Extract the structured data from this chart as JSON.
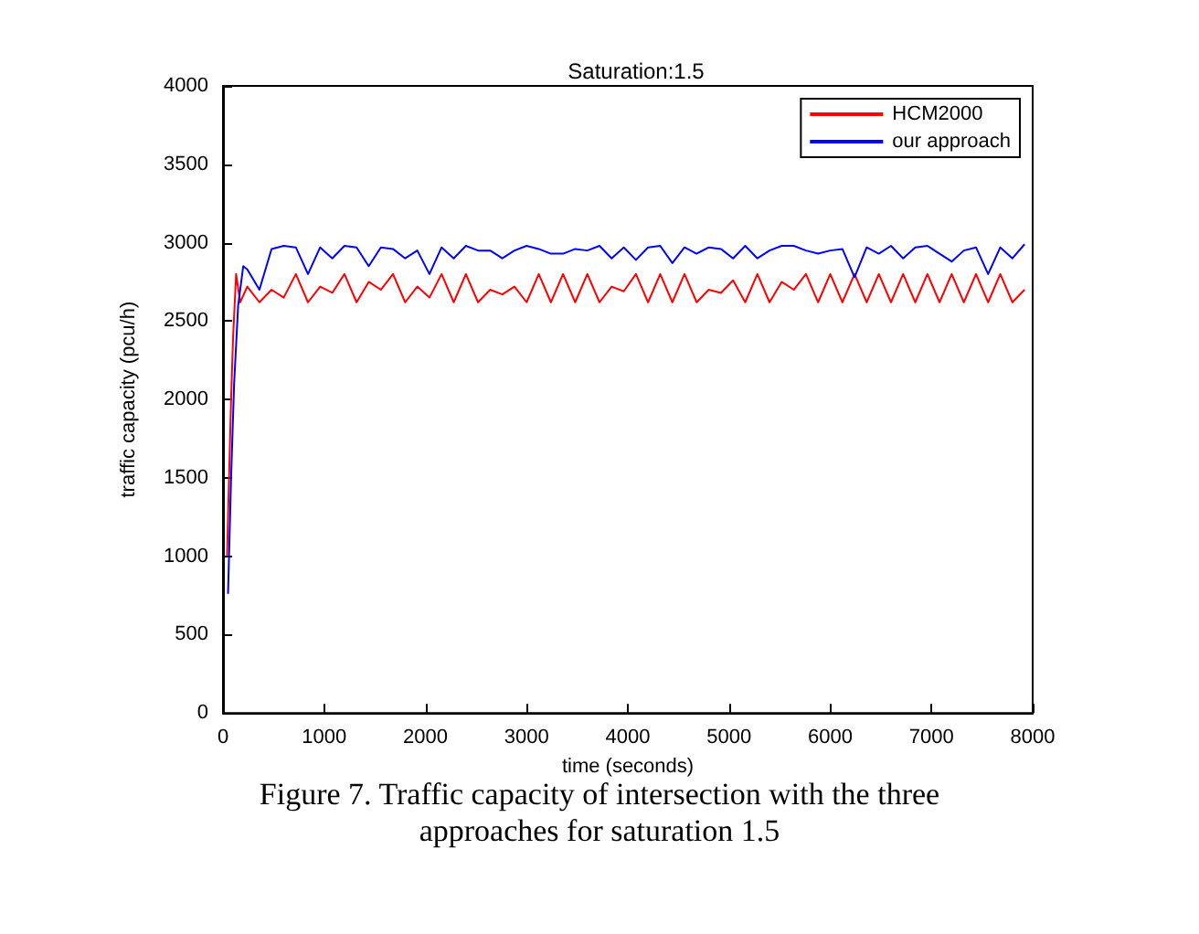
{
  "chart_data": {
    "type": "line",
    "title": "Saturation:1.5",
    "xlabel": "time (seconds)",
    "ylabel": "traffic capacity (pcu/h)",
    "annotations": [
      "Figure 7. Traffic capacity of intersection with the three approaches for saturation 1.5"
    ],
    "xlim": [
      0,
      8000
    ],
    "xticks": [
      0,
      1000,
      2000,
      3000,
      4000,
      5000,
      6000,
      7000,
      8000
    ],
    "ylim": [
      0,
      4000
    ],
    "yticks": [
      0,
      500,
      1000,
      1500,
      2000,
      2500,
      3000,
      3500,
      4000
    ],
    "grid": false,
    "legend": "top right",
    "marker": "none",
    "line_style": "solid",
    "series": [
      {
        "name": "HCM2000",
        "color": "#ff0000",
        "x": [
          40,
          60,
          80,
          100,
          130,
          170,
          240,
          360,
          480,
          600,
          720,
          840,
          960,
          1080,
          1200,
          1320,
          1440,
          1560,
          1680,
          1800,
          1920,
          2040,
          2160,
          2280,
          2400,
          2520,
          2640,
          2760,
          2880,
          3000,
          3120,
          3240,
          3360,
          3480,
          3600,
          3720,
          3840,
          3960,
          4080,
          4200,
          4320,
          4440,
          4560,
          4680,
          4800,
          4920,
          5040,
          5160,
          5280,
          5400,
          5520,
          5640,
          5760,
          5880,
          6000,
          6120,
          6240,
          6360,
          6480,
          6600,
          6720,
          6840,
          6960,
          7080,
          7200,
          7320,
          7440,
          7560,
          7680,
          7800,
          7920
        ],
        "values": [
          1000,
          1500,
          2000,
          2400,
          2800,
          2620,
          2720,
          2620,
          2700,
          2650,
          2800,
          2620,
          2720,
          2680,
          2800,
          2620,
          2750,
          2700,
          2800,
          2620,
          2720,
          2650,
          2800,
          2620,
          2800,
          2620,
          2700,
          2670,
          2720,
          2620,
          2800,
          2620,
          2800,
          2620,
          2800,
          2620,
          2720,
          2690,
          2800,
          2620,
          2800,
          2620,
          2800,
          2620,
          2700,
          2680,
          2760,
          2620,
          2800,
          2620,
          2750,
          2700,
          2800,
          2620,
          2800,
          2620,
          2800,
          2620,
          2800,
          2620,
          2800,
          2620,
          2800,
          2620,
          2800,
          2620,
          2800,
          2620,
          2800,
          2620,
          2700
        ]
      },
      {
        "name": "our approach",
        "color": "#0000ff",
        "x": [
          50,
          80,
          110,
          150,
          200,
          240,
          360,
          480,
          600,
          720,
          840,
          960,
          1080,
          1200,
          1320,
          1440,
          1560,
          1680,
          1800,
          1920,
          2040,
          2160,
          2280,
          2400,
          2520,
          2640,
          2760,
          2880,
          3000,
          3120,
          3240,
          3360,
          3480,
          3600,
          3720,
          3840,
          3960,
          4080,
          4200,
          4320,
          4440,
          4560,
          4680,
          4800,
          4920,
          5040,
          5160,
          5280,
          5400,
          5520,
          5640,
          5760,
          5880,
          6000,
          6120,
          6240,
          6360,
          6480,
          6600,
          6720,
          6840,
          6960,
          7080,
          7200,
          7320,
          7440,
          7560,
          7680,
          7800,
          7920
        ],
        "values": [
          760,
          1500,
          2100,
          2600,
          2850,
          2830,
          2700,
          2960,
          2980,
          2970,
          2800,
          2970,
          2900,
          2980,
          2970,
          2850,
          2970,
          2960,
          2900,
          2950,
          2800,
          2970,
          2900,
          2980,
          2950,
          2950,
          2900,
          2950,
          2980,
          2960,
          2930,
          2930,
          2960,
          2950,
          2980,
          2900,
          2970,
          2890,
          2970,
          2980,
          2870,
          2970,
          2930,
          2970,
          2960,
          2900,
          2980,
          2900,
          2950,
          2980,
          2980,
          2950,
          2930,
          2950,
          2960,
          2780,
          2970,
          2930,
          2980,
          2900,
          2970,
          2980,
          2930,
          2880,
          2950,
          2970,
          2800,
          2970,
          2900,
          2990
        ]
      }
    ]
  }
}
